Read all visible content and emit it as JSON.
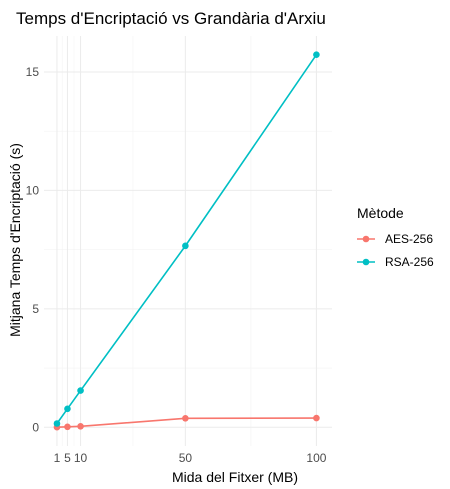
{
  "chart_data": {
    "type": "line",
    "title": "Temps d'Encriptació vs Grandària d'Arxiu",
    "xlabel": "Mida del Fitxer (MB)",
    "ylabel": "Mitjana Temps d'Encriptació (s)",
    "x": [
      1,
      5,
      10,
      50,
      100
    ],
    "x_ticks": [
      1,
      5,
      10,
      50,
      100
    ],
    "x_tick_labels": [
      "1",
      "5",
      "10",
      "50",
      "100"
    ],
    "y_ticks": [
      0,
      5,
      10,
      15
    ],
    "y_tick_labels": [
      "0",
      "5",
      "10",
      "15"
    ],
    "xlim": [
      -3.95,
      105.95
    ],
    "ylim": [
      -0.79,
      16.52
    ],
    "grid": true,
    "legend": {
      "title": "Mètode",
      "position": "right"
    },
    "series": [
      {
        "name": "AES-256",
        "color": "#F8766D",
        "values": [
          0.004,
          0.02,
          0.04,
          0.38,
          0.39
        ]
      },
      {
        "name": "RSA-256",
        "color": "#00BFC4",
        "values": [
          0.16,
          0.78,
          1.55,
          7.66,
          15.73
        ]
      }
    ]
  }
}
